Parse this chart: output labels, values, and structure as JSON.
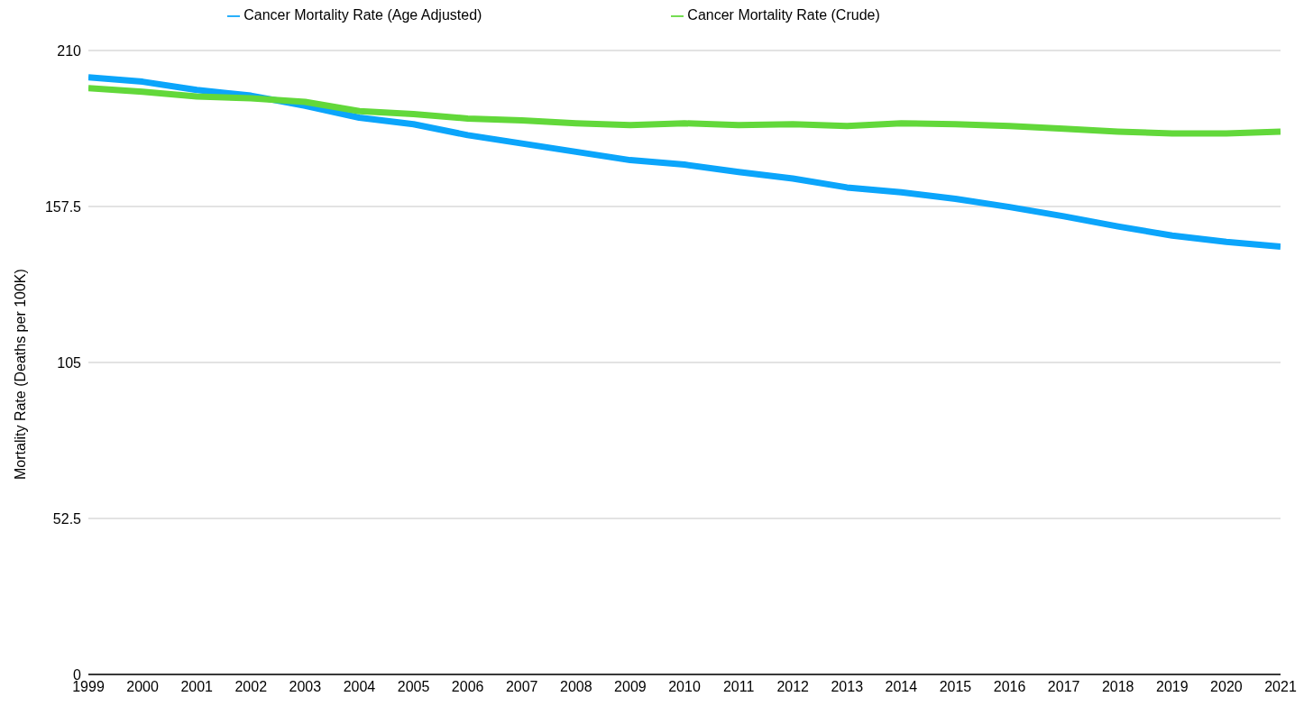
{
  "chart_data": {
    "type": "line",
    "ylabel": "Mortality Rate (Deaths per 100K)",
    "x": [
      1999,
      2000,
      2001,
      2002,
      2003,
      2004,
      2005,
      2006,
      2007,
      2008,
      2009,
      2010,
      2011,
      2012,
      2013,
      2014,
      2015,
      2016,
      2017,
      2018,
      2019,
      2020,
      2021
    ],
    "xlim": [
      1999,
      2021
    ],
    "xticks": [
      1999,
      2000,
      2001,
      2002,
      2003,
      2004,
      2005,
      2006,
      2007,
      2008,
      2009,
      2010,
      2011,
      2012,
      2013,
      2014,
      2015,
      2016,
      2017,
      2018,
      2019,
      2020,
      2021
    ],
    "ylim": [
      0,
      210
    ],
    "yticks": [
      0,
      52.5,
      105,
      157.5,
      210
    ],
    "grid": "y",
    "legend": "top",
    "marker": "none",
    "line_style": "solid",
    "series": [
      {
        "name": "Cancer Mortality Rate (Age Adjusted)",
        "color": "#0ba5fb",
        "values": [
          201.0,
          199.5,
          196.7,
          194.8,
          191.4,
          187.4,
          185.2,
          181.5,
          178.7,
          175.9,
          173.1,
          171.6,
          169.1,
          166.9,
          163.9,
          162.3,
          160.1,
          157.3,
          154.2,
          150.8,
          147.7,
          145.6,
          144.0
        ]
      },
      {
        "name": "Cancer Mortality Rate (Crude)",
        "color": "#62d83a",
        "values": [
          197.3,
          196.1,
          194.5,
          193.9,
          192.7,
          189.6,
          188.6,
          187.1,
          186.5,
          185.5,
          184.9,
          185.5,
          184.9,
          185.2,
          184.6,
          185.5,
          185.2,
          184.6,
          183.7,
          182.7,
          182.1,
          182.1,
          182.7
        ]
      }
    ]
  }
}
